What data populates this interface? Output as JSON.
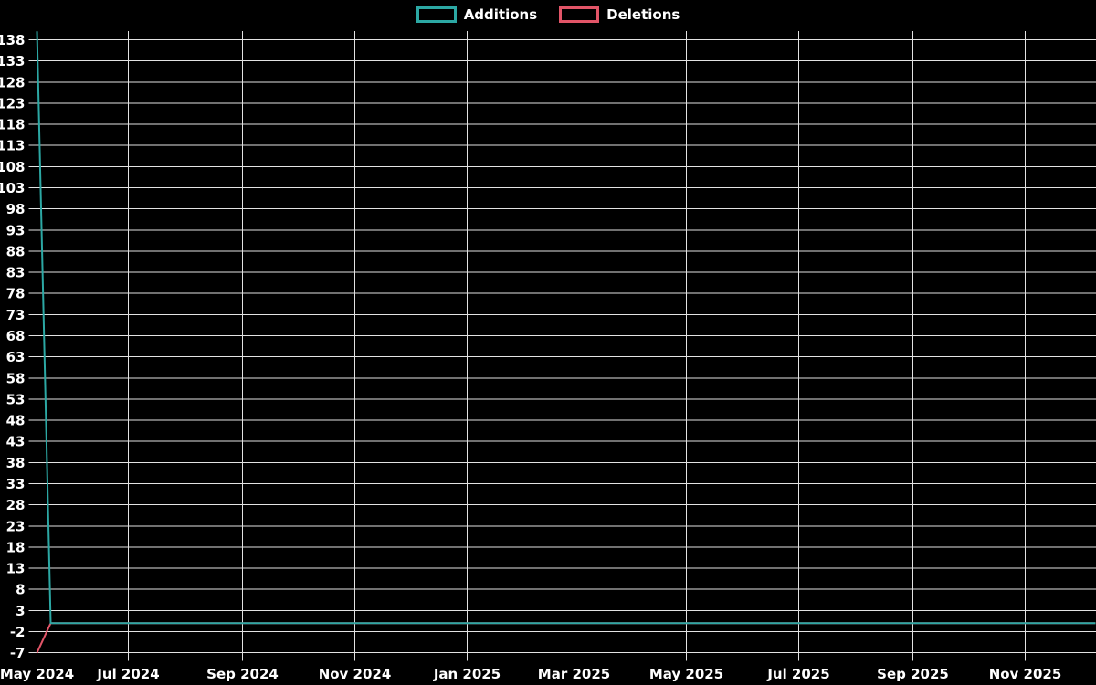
{
  "chart_data": {
    "type": "line",
    "title": "",
    "background_color": "#000000",
    "grid": true,
    "grid_color": "#e2e2e2",
    "text_color": "#ffffff",
    "legend_position": "top",
    "x_axis_type": "time",
    "x_tick_labels": [
      "May 2024",
      "Jul 2024",
      "Sep 2024",
      "Nov 2024",
      "Jan 2025",
      "Mar 2025",
      "May 2025",
      "Jul 2025",
      "Sep 2025",
      "Nov 2025"
    ],
    "y_ticks": [
      -7,
      -2,
      3,
      8,
      13,
      18,
      23,
      28,
      33,
      38,
      43,
      48,
      53,
      58,
      63,
      68,
      73,
      78,
      83,
      88,
      93,
      98,
      103,
      108,
      113,
      118,
      123,
      128,
      133,
      138
    ],
    "ylim": [
      -7,
      140
    ],
    "series": [
      {
        "name": "Additions",
        "color": "#2ca8a4",
        "points": [
          {
            "x": "mid May 2024 (first week)",
            "y": 140
          },
          {
            "x": "one week later (late May 2024)",
            "y": 0
          },
          {
            "x": "early Dec 2025 (end of axis)",
            "y": 0
          }
        ]
      },
      {
        "name": "Deletions",
        "color": "#e25568",
        "points": [
          {
            "x": "mid May 2024 (first week)",
            "y": -7
          },
          {
            "x": "one week later (late May 2024)",
            "y": 0
          },
          {
            "x": "early Dec 2025 (end of axis)",
            "y": 0
          }
        ]
      }
    ]
  }
}
